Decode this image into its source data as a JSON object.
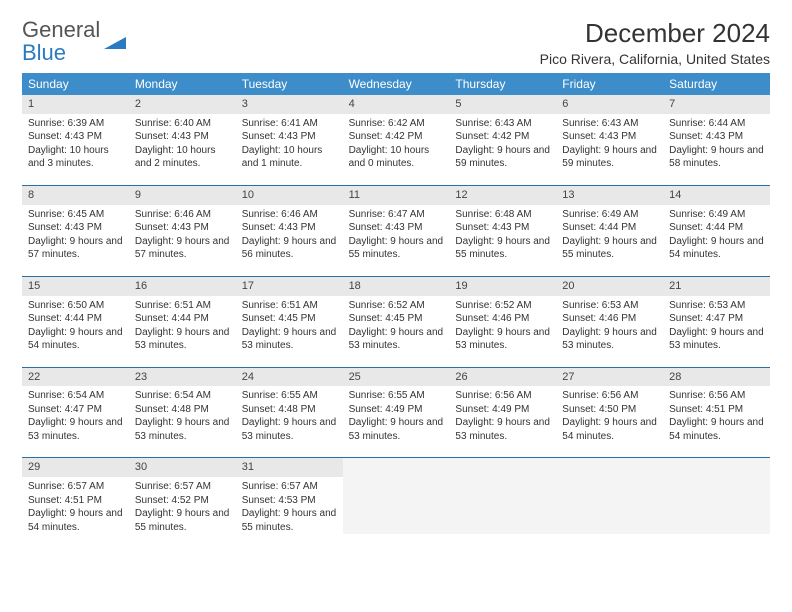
{
  "logo": {
    "line1": "General",
    "line2": "Blue"
  },
  "title": "December 2024",
  "subtitle": "Pico Rivera, California, United States",
  "colors": {
    "header_bg": "#3c8dca",
    "header_text": "#ffffff",
    "daynum_bg": "#e8e8e8",
    "week_border": "#2a6fa8",
    "logo_blue": "#2a7bbf",
    "text": "#333333"
  },
  "weekdays": [
    "Sunday",
    "Monday",
    "Tuesday",
    "Wednesday",
    "Thursday",
    "Friday",
    "Saturday"
  ],
  "weeks": [
    [
      {
        "n": "1",
        "sunrise": "6:39 AM",
        "sunset": "4:43 PM",
        "daylight": "10 hours and 3 minutes."
      },
      {
        "n": "2",
        "sunrise": "6:40 AM",
        "sunset": "4:43 PM",
        "daylight": "10 hours and 2 minutes."
      },
      {
        "n": "3",
        "sunrise": "6:41 AM",
        "sunset": "4:43 PM",
        "daylight": "10 hours and 1 minute."
      },
      {
        "n": "4",
        "sunrise": "6:42 AM",
        "sunset": "4:42 PM",
        "daylight": "10 hours and 0 minutes."
      },
      {
        "n": "5",
        "sunrise": "6:43 AM",
        "sunset": "4:42 PM",
        "daylight": "9 hours and 59 minutes."
      },
      {
        "n": "6",
        "sunrise": "6:43 AM",
        "sunset": "4:43 PM",
        "daylight": "9 hours and 59 minutes."
      },
      {
        "n": "7",
        "sunrise": "6:44 AM",
        "sunset": "4:43 PM",
        "daylight": "9 hours and 58 minutes."
      }
    ],
    [
      {
        "n": "8",
        "sunrise": "6:45 AM",
        "sunset": "4:43 PM",
        "daylight": "9 hours and 57 minutes."
      },
      {
        "n": "9",
        "sunrise": "6:46 AM",
        "sunset": "4:43 PM",
        "daylight": "9 hours and 57 minutes."
      },
      {
        "n": "10",
        "sunrise": "6:46 AM",
        "sunset": "4:43 PM",
        "daylight": "9 hours and 56 minutes."
      },
      {
        "n": "11",
        "sunrise": "6:47 AM",
        "sunset": "4:43 PM",
        "daylight": "9 hours and 55 minutes."
      },
      {
        "n": "12",
        "sunrise": "6:48 AM",
        "sunset": "4:43 PM",
        "daylight": "9 hours and 55 minutes."
      },
      {
        "n": "13",
        "sunrise": "6:49 AM",
        "sunset": "4:44 PM",
        "daylight": "9 hours and 55 minutes."
      },
      {
        "n": "14",
        "sunrise": "6:49 AM",
        "sunset": "4:44 PM",
        "daylight": "9 hours and 54 minutes."
      }
    ],
    [
      {
        "n": "15",
        "sunrise": "6:50 AM",
        "sunset": "4:44 PM",
        "daylight": "9 hours and 54 minutes."
      },
      {
        "n": "16",
        "sunrise": "6:51 AM",
        "sunset": "4:44 PM",
        "daylight": "9 hours and 53 minutes."
      },
      {
        "n": "17",
        "sunrise": "6:51 AM",
        "sunset": "4:45 PM",
        "daylight": "9 hours and 53 minutes."
      },
      {
        "n": "18",
        "sunrise": "6:52 AM",
        "sunset": "4:45 PM",
        "daylight": "9 hours and 53 minutes."
      },
      {
        "n": "19",
        "sunrise": "6:52 AM",
        "sunset": "4:46 PM",
        "daylight": "9 hours and 53 minutes."
      },
      {
        "n": "20",
        "sunrise": "6:53 AM",
        "sunset": "4:46 PM",
        "daylight": "9 hours and 53 minutes."
      },
      {
        "n": "21",
        "sunrise": "6:53 AM",
        "sunset": "4:47 PM",
        "daylight": "9 hours and 53 minutes."
      }
    ],
    [
      {
        "n": "22",
        "sunrise": "6:54 AM",
        "sunset": "4:47 PM",
        "daylight": "9 hours and 53 minutes."
      },
      {
        "n": "23",
        "sunrise": "6:54 AM",
        "sunset": "4:48 PM",
        "daylight": "9 hours and 53 minutes."
      },
      {
        "n": "24",
        "sunrise": "6:55 AM",
        "sunset": "4:48 PM",
        "daylight": "9 hours and 53 minutes."
      },
      {
        "n": "25",
        "sunrise": "6:55 AM",
        "sunset": "4:49 PM",
        "daylight": "9 hours and 53 minutes."
      },
      {
        "n": "26",
        "sunrise": "6:56 AM",
        "sunset": "4:49 PM",
        "daylight": "9 hours and 53 minutes."
      },
      {
        "n": "27",
        "sunrise": "6:56 AM",
        "sunset": "4:50 PM",
        "daylight": "9 hours and 54 minutes."
      },
      {
        "n": "28",
        "sunrise": "6:56 AM",
        "sunset": "4:51 PM",
        "daylight": "9 hours and 54 minutes."
      }
    ],
    [
      {
        "n": "29",
        "sunrise": "6:57 AM",
        "sunset": "4:51 PM",
        "daylight": "9 hours and 54 minutes."
      },
      {
        "n": "30",
        "sunrise": "6:57 AM",
        "sunset": "4:52 PM",
        "daylight": "9 hours and 55 minutes."
      },
      {
        "n": "31",
        "sunrise": "6:57 AM",
        "sunset": "4:53 PM",
        "daylight": "9 hours and 55 minutes."
      },
      null,
      null,
      null,
      null
    ]
  ],
  "labels": {
    "sunrise": "Sunrise:",
    "sunset": "Sunset:",
    "daylight": "Daylight:"
  }
}
